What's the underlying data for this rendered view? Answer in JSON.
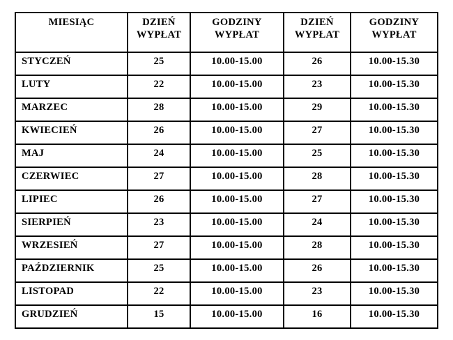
{
  "table": {
    "title": "payout-schedule",
    "headers": [
      "MIESIĄC",
      "DZIEŃ WYPŁAT",
      "GODZINY WYPŁAT",
      "DZIEŃ WYPŁAT",
      "GODZINY WYPŁAT"
    ],
    "cell_names": [
      "month-cell",
      "payout-day-1-cell",
      "payout-hours-1-cell",
      "payout-day-2-cell",
      "payout-hours-2-cell"
    ],
    "rows": [
      [
        "STYCZEŃ",
        "25",
        "10.00-15.00",
        "26",
        "10.00-15.30"
      ],
      [
        "LUTY",
        "22",
        "10.00-15.00",
        "23",
        "10.00-15.30"
      ],
      [
        "MARZEC",
        "28",
        "10.00-15.00",
        "29",
        "10.00-15.30"
      ],
      [
        "KWIECIEŃ",
        "26",
        "10.00-15.00",
        "27",
        "10.00-15.30"
      ],
      [
        "MAJ",
        "24",
        "10.00-15.00",
        "25",
        "10.00-15.30"
      ],
      [
        "CZERWIEC",
        "27",
        "10.00-15.00",
        "28",
        "10.00-15.30"
      ],
      [
        "LIPIEC",
        "26",
        "10.00-15.00",
        "27",
        "10.00-15.30"
      ],
      [
        "SIERPIEŃ",
        "23",
        "10.00-15.00",
        "24",
        "10.00-15.30"
      ],
      [
        "WRZESIEŃ",
        "27",
        "10.00-15.00",
        "28",
        "10.00-15.30"
      ],
      [
        "PAŹDZIERNIK",
        "25",
        "10.00-15.00",
        "26",
        "10.00-15.30"
      ],
      [
        "LISTOPAD",
        "22",
        "10.00-15.00",
        "23",
        "10.00-15.30"
      ],
      [
        "GRUDZIEŃ",
        "15",
        "10.00-15.00",
        "16",
        "10.00-15.30"
      ]
    ],
    "colors": {
      "border": "#000000",
      "text": "#000000",
      "background": "#ffffff"
    }
  }
}
